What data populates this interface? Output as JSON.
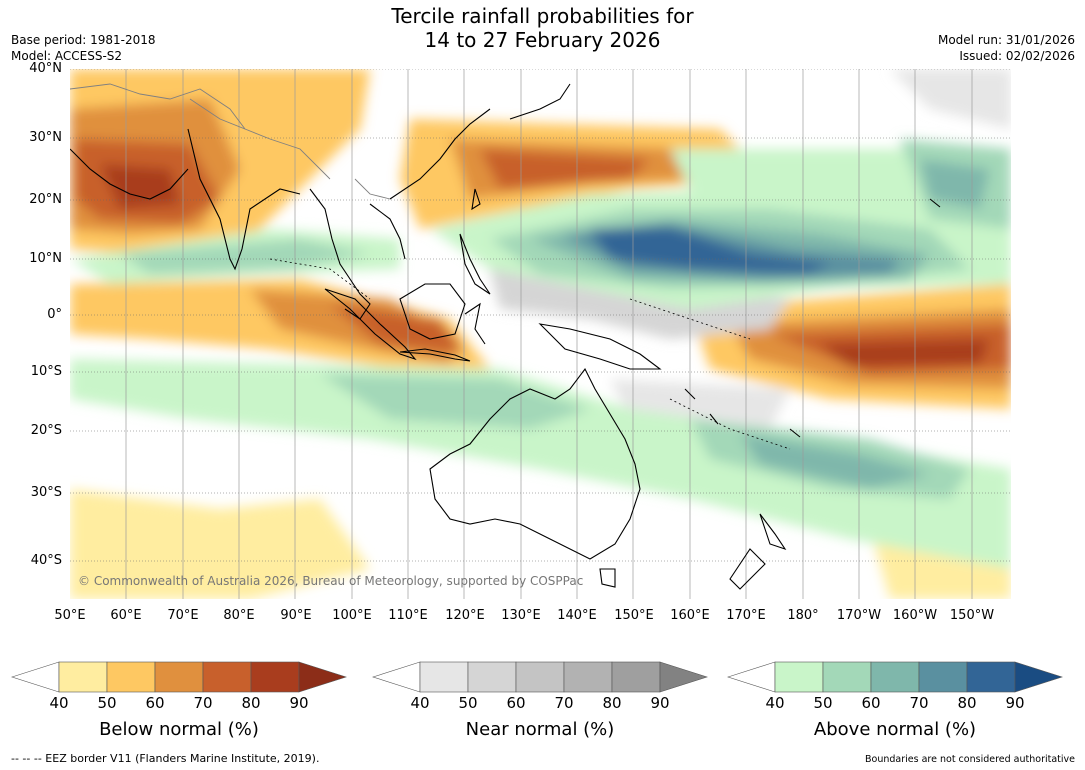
{
  "title_line1": "Tercile rainfall probabilities for",
  "title_line2": "14 to 27 February 2026",
  "base_period": "Base period: 1981-2018",
  "model": "Model: ACCESS-S2",
  "model_run": "Model run: 31/01/2026",
  "issued": "Issued: 02/02/2026",
  "lat_labels": [
    "40°N",
    "30°N",
    "20°N",
    "10°N",
    "0°",
    "10°S",
    "20°S",
    "30°S",
    "40°S"
  ],
  "lon_labels": [
    "50°E",
    "60°E",
    "70°E",
    "80°E",
    "90°E",
    "100°E",
    "110°E",
    "120°E",
    "130°E",
    "140°E",
    "150°E",
    "160°E",
    "170°E",
    "180°",
    "170°W",
    "160°W",
    "150°W"
  ],
  "copyright": "© Commonwealth of Australia 2026, Bureau of Meteorology, supported by COSPPac",
  "colorbars": [
    {
      "title": "Below normal (%)",
      "ticks": [
        "40",
        "50",
        "60",
        "70",
        "80",
        "90"
      ],
      "colors": [
        "#ffffff",
        "#ffeda0",
        "#fec862",
        "#e0903e",
        "#c8602c",
        "#a93d1e",
        "#8c2d18"
      ]
    },
    {
      "title": "Near normal (%)",
      "ticks": [
        "40",
        "50",
        "60",
        "70",
        "80",
        "90"
      ],
      "colors": [
        "#ffffff",
        "#e6e6e6",
        "#d5d5d5",
        "#c4c4c4",
        "#b2b2b2",
        "#9f9f9f",
        "#828282"
      ]
    },
    {
      "title": "Above normal (%)",
      "ticks": [
        "40",
        "50",
        "60",
        "70",
        "80",
        "90"
      ],
      "colors": [
        "#ffffff",
        "#c9f5c9",
        "#a3d8b8",
        "#7fb7ab",
        "#5a90a0",
        "#326596",
        "#1a4c82"
      ]
    }
  ],
  "footer_left": "-- -- -- EEZ border V11 (Flanders Marine Institute, 2019).",
  "footer_right": "Boundaries are not considered authoritative"
}
